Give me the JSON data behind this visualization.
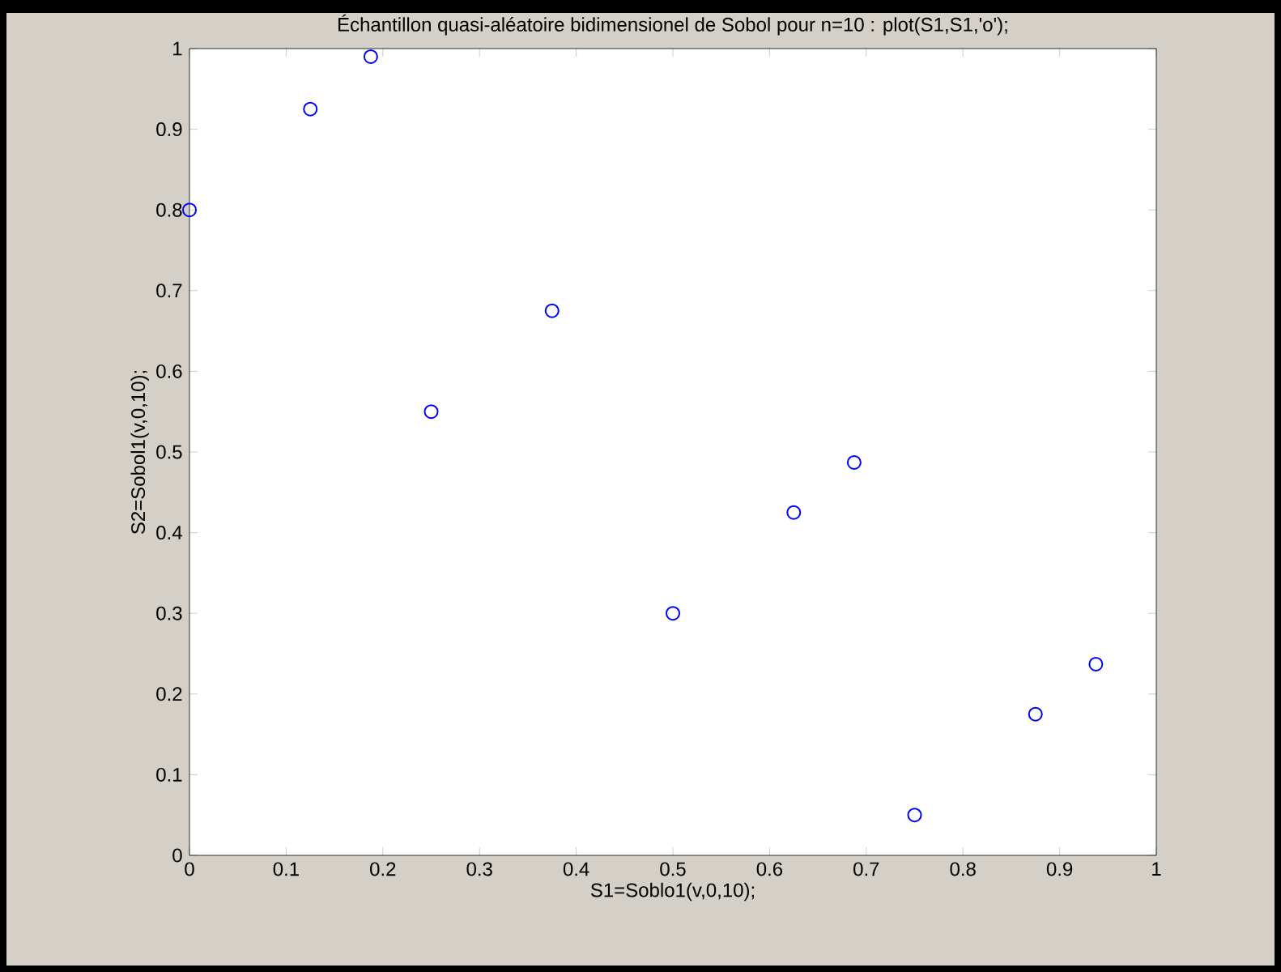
{
  "chart_data": {
    "type": "scatter",
    "title": "Échantillon quasi-aléatoire bidimensionel de Sobol pour n=10 : plot(S1,S1,'o');",
    "xlabel": "S1=Soblo1(v,0,10);",
    "ylabel": "S2=Sobol1(v,0,10);",
    "x": [
      0,
      0.125,
      0.1875,
      0.25,
      0.375,
      0.5,
      0.625,
      0.6875,
      0.75,
      0.875,
      0.9375
    ],
    "series": [
      {
        "color": "#0000ff",
        "values": [
          0.8,
          0.925,
          0.99,
          0.55,
          0.675,
          0.3,
          0.425,
          0.487,
          0.05,
          0.175,
          0.237
        ]
      }
    ],
    "marker": "circle",
    "grid": false,
    "xlim": [
      0,
      1
    ],
    "ylim": [
      0,
      1
    ],
    "xticks": [
      0,
      0.1,
      0.2,
      0.3,
      0.4,
      0.5,
      0.6,
      0.7,
      0.8,
      0.9,
      1
    ],
    "yticks": [
      0,
      0.1,
      0.2,
      0.3,
      0.4,
      0.5,
      0.6,
      0.7,
      0.8,
      0.9,
      1
    ]
  }
}
